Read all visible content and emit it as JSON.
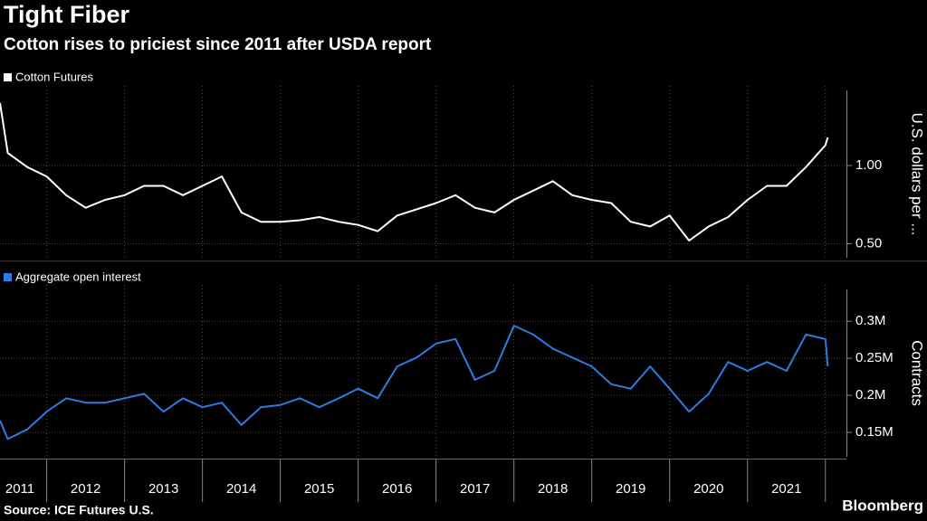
{
  "chart_data": [
    {
      "type": "line",
      "title": "Tight Fiber",
      "subtitle": "Cotton rises to priciest since 2011 after USDA report",
      "y_label": "U.S. dollars per ...",
      "xlim": [
        2011.4,
        2022.27
      ],
      "ylim": [
        0.41,
        1.48
      ],
      "yticks": [
        {
          "value": 0.5,
          "label": "0.50"
        },
        {
          "value": 1.0,
          "label": "1.00"
        }
      ],
      "grid": true,
      "x": [
        2011.4,
        2011.5,
        2011.75,
        2012.0,
        2012.25,
        2012.5,
        2012.75,
        2013.0,
        2013.25,
        2013.5,
        2013.75,
        2014.0,
        2014.25,
        2014.5,
        2014.75,
        2015.0,
        2015.25,
        2015.5,
        2015.75,
        2016.0,
        2016.25,
        2016.5,
        2016.75,
        2017.0,
        2017.25,
        2017.5,
        2017.75,
        2018.0,
        2018.25,
        2018.5,
        2018.75,
        2019.0,
        2019.25,
        2019.5,
        2019.75,
        2020.0,
        2020.25,
        2020.5,
        2020.75,
        2021.0,
        2021.25,
        2021.5,
        2021.75,
        2022.0,
        2022.03
      ],
      "series": [
        {
          "name": "Cotton Futures",
          "color": "#ffffff",
          "values": [
            1.4,
            1.08,
            0.99,
            0.93,
            0.81,
            0.73,
            0.78,
            0.81,
            0.87,
            0.87,
            0.81,
            0.87,
            0.93,
            0.7,
            0.64,
            0.64,
            0.65,
            0.67,
            0.64,
            0.62,
            0.58,
            0.68,
            0.72,
            0.76,
            0.81,
            0.73,
            0.7,
            0.78,
            0.84,
            0.9,
            0.81,
            0.78,
            0.76,
            0.64,
            0.61,
            0.68,
            0.52,
            0.61,
            0.67,
            0.78,
            0.87,
            0.87,
            0.99,
            1.13,
            1.18
          ]
        }
      ]
    },
    {
      "type": "line",
      "y_label": "Contracts",
      "xlim": [
        2011.4,
        2022.27
      ],
      "ylim": [
        117000,
        343000
      ],
      "yticks": [
        {
          "value": 150000,
          "label": "0.15M"
        },
        {
          "value": 200000,
          "label": "0.2M"
        },
        {
          "value": 250000,
          "label": "0.25M"
        },
        {
          "value": 300000,
          "label": "0.3M"
        }
      ],
      "grid": true,
      "xticks": [
        {
          "value": 2011.5,
          "label": "2011"
        },
        {
          "value": 2012.5,
          "label": "2012"
        },
        {
          "value": 2013.5,
          "label": "2013"
        },
        {
          "value": 2014.5,
          "label": "2014"
        },
        {
          "value": 2015.5,
          "label": "2015"
        },
        {
          "value": 2016.5,
          "label": "2016"
        },
        {
          "value": 2017.5,
          "label": "2017"
        },
        {
          "value": 2018.5,
          "label": "2018"
        },
        {
          "value": 2019.5,
          "label": "2019"
        },
        {
          "value": 2020.5,
          "label": "2020"
        },
        {
          "value": 2021.5,
          "label": "2021"
        }
      ],
      "x": [
        2011.4,
        2011.5,
        2011.75,
        2012.0,
        2012.25,
        2012.5,
        2012.75,
        2013.0,
        2013.25,
        2013.5,
        2013.75,
        2014.0,
        2014.25,
        2014.5,
        2014.75,
        2015.0,
        2015.25,
        2015.5,
        2015.75,
        2016.0,
        2016.25,
        2016.5,
        2016.75,
        2017.0,
        2017.25,
        2017.5,
        2017.75,
        2018.0,
        2018.25,
        2018.5,
        2018.75,
        2019.0,
        2019.25,
        2019.5,
        2019.75,
        2020.0,
        2020.25,
        2020.5,
        2020.75,
        2021.0,
        2021.25,
        2021.5,
        2021.75,
        2022.0,
        2022.03
      ],
      "series": [
        {
          "name": "Aggregate open interest",
          "color": "#2a7de1",
          "values": [
            166000,
            141000,
            154000,
            178000,
            196000,
            190000,
            190000,
            196000,
            202000,
            178000,
            196000,
            184000,
            190000,
            160000,
            184000,
            187000,
            196000,
            184000,
            196000,
            209000,
            196000,
            239000,
            251000,
            270000,
            276000,
            221000,
            233000,
            294000,
            282000,
            263000,
            251000,
            239000,
            215000,
            209000,
            239000,
            209000,
            178000,
            202000,
            245000,
            233000,
            245000,
            233000,
            282000,
            276000,
            239000
          ]
        }
      ]
    }
  ],
  "footer": {
    "source": "Source: ICE Futures U.S.",
    "brand": "Bloomberg"
  }
}
